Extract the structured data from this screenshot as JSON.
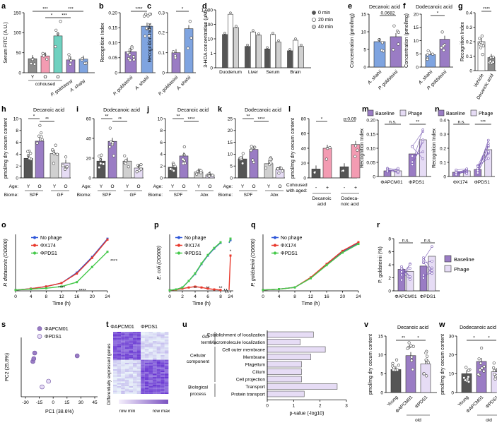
{
  "colors": {
    "purple": "#9A7CC4",
    "light_purple": "#E6DCF5",
    "teal": "#6FD1C0",
    "pink": "#F39BB2",
    "blue": "#7FA4E0",
    "gray": "#8C8C8C",
    "dark_gray": "#555555",
    "light_gray": "#D0D0D0",
    "line_blue": "#2F57D8",
    "line_red": "#E8372A",
    "line_green": "#45C94B"
  },
  "chart_data": [
    {
      "panel": "a",
      "type": "bar",
      "ylabel": "Serum FITC (A.U.)",
      "yticks": [
        "0",
        "50",
        "100",
        "150"
      ],
      "ylim": [
        0,
        150
      ],
      "categories": [
        "Y",
        "O",
        "O",
        "P. goldsteinii",
        "A. shahii"
      ],
      "group_label": "cohoused",
      "values": [
        35,
        42,
        92,
        32,
        34
      ],
      "colors": [
        "#8C8C8C",
        "#F39BB2",
        "#6FD1C0",
        "#9A7CC4",
        "#7FA4E0"
      ],
      "significance": [
        "***",
        "*",
        "***",
        "***"
      ]
    },
    {
      "panel": "b",
      "type": "bar",
      "ylabel": "Recognition Index",
      "yticks": [
        "0",
        "0.05",
        "0.10",
        "0.15",
        "0.20"
      ],
      "ylim": [
        0,
        0.2
      ],
      "categories": [
        "P. goldsteinii",
        "A. shahii"
      ],
      "values": [
        0.07,
        0.155
      ],
      "colors": [
        "#9A7CC4",
        "#7FA4E0"
      ],
      "significance": [
        "****"
      ]
    },
    {
      "panel": "c",
      "type": "bar",
      "ylabel": "Recognition Index",
      "yticks": [
        "0",
        "0.1",
        "0.2",
        "0.3"
      ],
      "ylim": [
        0,
        0.3
      ],
      "categories": [
        "P. goldsteinii",
        "A. shahii"
      ],
      "values": [
        0.1,
        0.22
      ],
      "colors": [
        "#9A7CC4",
        "#7FA4E0"
      ],
      "significance": [
        "*"
      ]
    },
    {
      "panel": "d",
      "type": "bar",
      "ylabel": "3-HOA concentration (μM)",
      "yscale": "log",
      "yticks": [
        "0",
        "1",
        "10",
        "100",
        "1,000"
      ],
      "categories": [
        "Duodenum",
        "Liver",
        "Serum",
        "Brain"
      ],
      "series": [
        {
          "name": "0 min",
          "values": [
            20,
            3,
            2,
            1.5
          ],
          "color": "#555555"
        },
        {
          "name": "20 min",
          "values": [
            500,
            30,
            20,
            8
          ],
          "color": "#FFFFFF"
        },
        {
          "name": "40 min",
          "values": [
            60,
            18,
            6,
            3
          ],
          "color": "#D0D0D0"
        }
      ]
    },
    {
      "panel": "e",
      "type": "bar",
      "title": "Decanoic acid",
      "ylabel": "Concentration (pmol/mg)",
      "yticks": [
        "0",
        "5",
        "10",
        "15"
      ],
      "ylim": [
        0,
        15
      ],
      "categories": [
        "A. shahii",
        "P. goldsteinii"
      ],
      "values": [
        7.2,
        8.6
      ],
      "colors": [
        "#7FA4E0",
        "#9A7CC4"
      ],
      "significance": [
        "0.0682"
      ]
    },
    {
      "panel": "f",
      "type": "bar",
      "title": "Dodecanoic acid",
      "ylabel": "Concentration (pmol/mg)",
      "yticks": [
        "0",
        "5",
        "10",
        "15",
        "20"
      ],
      "ylim": [
        0,
        20
      ],
      "categories": [
        "A. shahii",
        "P. goldsteinii"
      ],
      "values": [
        4.7,
        10.5
      ],
      "colors": [
        "#7FA4E0",
        "#9A7CC4"
      ],
      "significance": [
        "*"
      ]
    },
    {
      "panel": "g",
      "type": "bar",
      "ylabel": "Recognition Index",
      "yticks": [
        "0",
        "0.1",
        "0.2",
        "0.3",
        "0.4"
      ],
      "ylim": [
        0,
        0.4
      ],
      "categories": [
        "Vehicle",
        "Decanoic acid"
      ],
      "values": [
        0.2,
        0.09
      ],
      "colors": [
        "#FFFFFF",
        "#8C8C8C"
      ],
      "significance": [
        "****"
      ]
    },
    {
      "panel": "h",
      "type": "bar",
      "title": "Decanoic acid",
      "ylabel": "pmol/mg dry cecum content",
      "yticks": [
        "0",
        "2",
        "4",
        "6",
        "8",
        "10"
      ],
      "ylim": [
        0,
        10
      ],
      "categories": [
        "Y",
        "O",
        "Y",
        "O"
      ],
      "groups": [
        "SPF",
        "GF"
      ],
      "values": [
        3.3,
        6.2,
        4.1,
        2.5
      ],
      "colors": [
        "#555555",
        "#9A7CC4",
        "#D0D0D0",
        "#E6DCF5"
      ],
      "significance": [
        "*",
        "**"
      ]
    },
    {
      "panel": "i",
      "type": "bar",
      "title": "Dodecanoic acid",
      "yticks": [
        "0",
        "20",
        "40",
        "60"
      ],
      "ylim": [
        0,
        60
      ],
      "categories": [
        "Y",
        "O",
        "Y",
        "O"
      ],
      "groups": [
        "SPF",
        "GF"
      ],
      "values": [
        17,
        37,
        17,
        10
      ],
      "colors": [
        "#555555",
        "#9A7CC4",
        "#D0D0D0",
        "#E6DCF5"
      ],
      "significance": [
        "**",
        "**"
      ]
    },
    {
      "panel": "j",
      "type": "bar",
      "title": "Decanoic acid",
      "yticks": [
        "0",
        "2",
        "4",
        "6",
        "8",
        "10"
      ],
      "ylim": [
        0,
        10
      ],
      "categories": [
        "Y",
        "O",
        "Y",
        "O"
      ],
      "groups": [
        "SPF",
        "Abx"
      ],
      "values": [
        1.8,
        3.7,
        1.0,
        0.5
      ],
      "colors": [
        "#555555",
        "#9A7CC4",
        "#D0D0D0",
        "#E6DCF5"
      ],
      "significance": [
        "**",
        "****"
      ]
    },
    {
      "panel": "k",
      "type": "bar",
      "title": "Dodecanoic acid",
      "yticks": [
        "0",
        "5",
        "10",
        "15",
        "20",
        "25"
      ],
      "ylim": [
        0,
        25
      ],
      "categories": [
        "Y",
        "O",
        "Y",
        "O"
      ],
      "groups": [
        "SPF",
        "Abx"
      ],
      "values": [
        8,
        12,
        6,
        3.5
      ],
      "colors": [
        "#555555",
        "#9A7CC4",
        "#D0D0D0",
        "#E6DCF5"
      ],
      "significance": [
        "**",
        "****"
      ]
    },
    {
      "panel": "l",
      "type": "bar",
      "ylabel": "pmol/mg dry cecum content",
      "yticks": [
        "0",
        "20",
        "40",
        "60",
        "80"
      ],
      "ylim": [
        0,
        80
      ],
      "categories": [
        "-",
        "+",
        "-",
        "+"
      ],
      "groups": [
        "Decanoic acid",
        "Dodeca- noic acid"
      ],
      "row_label": "Cohoused with aged:",
      "values": [
        12,
        40,
        15,
        45
      ],
      "colors": [
        "#555555",
        "#F39BB2",
        "#555555",
        "#F39BB2"
      ],
      "significance": [
        "*",
        "p:0.09"
      ]
    },
    {
      "panel": "m",
      "type": "bar",
      "ylabel": "Recognition Index",
      "yticks": [
        "0",
        "0.05",
        "0.10",
        "0.15",
        "0.20"
      ],
      "ylim": [
        0,
        0.2
      ],
      "categories": [
        "ΦAPCM01",
        "ΦPDS1"
      ],
      "series": [
        {
          "name": "Baseline",
          "values": [
            0.02,
            0.08
          ]
        },
        {
          "name": "Phage",
          "values": [
            0.02,
            0.13
          ]
        }
      ],
      "significance": [
        "n.s.",
        "**"
      ]
    },
    {
      "panel": "n",
      "type": "bar",
      "ylabel": "Recognition Index",
      "yticks": [
        "0",
        "0.1",
        "0.2",
        "0.3",
        "0.4"
      ],
      "ylim": [
        0,
        0.4
      ],
      "categories": [
        "ΦX174",
        "ΦPDS1"
      ],
      "series": [
        {
          "name": "Baseline",
          "values": [
            0.03,
            0.05
          ]
        },
        {
          "name": "Phage",
          "values": [
            0.04,
            0.19
          ]
        }
      ],
      "significance": [
        "n.s.",
        "***"
      ]
    },
    {
      "panel": "o",
      "type": "line",
      "xlabel": "Time (h)",
      "ylabel": "P. distasonis (OD600)",
      "xticks": [
        "0",
        "4",
        "8",
        "12",
        "16",
        "20",
        "24"
      ],
      "xlim": [
        0,
        24
      ],
      "ylim": [
        0,
        1.3
      ],
      "series": [
        {
          "name": "No phage",
          "x": [
            0,
            4,
            8,
            12,
            16,
            20,
            24
          ],
          "y": [
            0.02,
            0.05,
            0.1,
            0.18,
            0.42,
            0.78,
            1.2
          ],
          "color": "#2F57D8"
        },
        {
          "name": "ΦX174",
          "x": [
            0,
            4,
            8,
            12,
            16,
            20,
            24
          ],
          "y": [
            0.02,
            0.05,
            0.1,
            0.18,
            0.4,
            0.76,
            1.18
          ],
          "color": "#E8372A"
        },
        {
          "name": "ΦPDS1",
          "x": [
            0,
            4,
            8,
            12,
            16,
            20,
            24
          ],
          "y": [
            0.02,
            0.04,
            0.06,
            0.1,
            0.2,
            0.55,
            0.9
          ],
          "color": "#45C94B"
        }
      ],
      "annotations": [
        "****",
        "****",
        "****"
      ]
    },
    {
      "panel": "p",
      "type": "line",
      "xlabel": "Time (h)",
      "ylabel": "E. coli (OD600)",
      "xticks": [
        "0",
        "2",
        "4",
        "6",
        "8",
        "24"
      ],
      "ylim": [
        0,
        2.0
      ],
      "series": [
        {
          "name": "No phage",
          "x": [
            0,
            1,
            2,
            3,
            4,
            5,
            6,
            7,
            8,
            24
          ],
          "y": [
            0.02,
            0.05,
            0.12,
            0.35,
            0.6,
            0.95,
            1.25,
            1.5,
            1.7,
            1.8
          ],
          "color": "#2F57D8"
        },
        {
          "name": "ΦX174",
          "x": [
            0,
            1,
            2,
            3,
            4,
            5,
            6,
            7,
            8,
            24
          ],
          "y": [
            0.02,
            0.04,
            0.08,
            0.12,
            0.15,
            0.12,
            0.08,
            0.05,
            0.03,
            1.25
          ],
          "color": "#E8372A"
        },
        {
          "name": "ΦPDS1",
          "x": [
            0,
            1,
            2,
            3,
            4,
            5,
            6,
            7,
            8,
            24
          ],
          "y": [
            0.02,
            0.05,
            0.12,
            0.35,
            0.62,
            0.97,
            1.27,
            1.52,
            1.72,
            1.85
          ],
          "color": "#45C94B"
        }
      ],
      "annotations": [
        "**",
        "**",
        "**",
        "*"
      ]
    },
    {
      "panel": "q",
      "type": "line",
      "xlabel": "Time (h)",
      "ylabel": "P. goldsteinii (OD600)",
      "xticks": [
        "0",
        "4",
        "8",
        "12",
        "16",
        "20",
        "24"
      ],
      "xlim": [
        0,
        24
      ],
      "ylim": [
        0,
        1.3
      ],
      "series": [
        {
          "name": "No phage",
          "x": [
            0,
            4,
            8,
            12,
            16,
            20,
            24
          ],
          "y": [
            0.02,
            0.04,
            0.08,
            0.3,
            0.6,
            0.9,
            1.1
          ],
          "color": "#2F57D8"
        },
        {
          "name": "ΦX174",
          "x": [
            0,
            4,
            8,
            12,
            16,
            20,
            24
          ],
          "y": [
            0.02,
            0.04,
            0.08,
            0.31,
            0.62,
            0.92,
            1.12
          ],
          "color": "#E8372A"
        },
        {
          "name": "ΦPDS1",
          "x": [
            0,
            4,
            8,
            12,
            16,
            20,
            24
          ],
          "y": [
            0.02,
            0.04,
            0.08,
            0.29,
            0.59,
            0.88,
            1.08
          ],
          "color": "#45C94B"
        }
      ]
    },
    {
      "panel": "r",
      "type": "bar",
      "ylabel": "P. goldsteinii (%)",
      "yticks": [
        "0",
        "2",
        "4",
        "6",
        "8"
      ],
      "ylim": [
        0,
        8
      ],
      "categories": [
        "ΦAPCM01",
        "ΦPDS1"
      ],
      "series": [
        {
          "name": "Baseline",
          "values": [
            3.3,
            3.8
          ]
        },
        {
          "name": "Phage",
          "values": [
            3.0,
            5.3
          ]
        }
      ],
      "significance": [
        "n.s.",
        "n.s."
      ]
    },
    {
      "panel": "s",
      "type": "scatter",
      "xlabel": "PC1 (38.6%)",
      "ylabel": "PC2 (25.8%)",
      "xticks": [
        "-30",
        "-15",
        "0",
        "15",
        "30",
        "45"
      ],
      "series": [
        {
          "name": "ΦAPCM01",
          "x": [
            -22,
            -21,
            -20,
            26
          ],
          "y": [
            0.1,
            0.15,
            0.25,
            0.2
          ],
          "color": "#9A7CC4"
        },
        {
          "name": "ΦPDS1",
          "x": [
            -12,
            -5
          ],
          "y": [
            -0.35,
            -0.25
          ],
          "color": "#E6DCF5"
        }
      ]
    },
    {
      "panel": "t",
      "type": "heatmap",
      "ylabel": "Differentially expressed genes",
      "columns": [
        "ΦAPCM01",
        "ΦPDS1"
      ],
      "legend": [
        "row min",
        "row max"
      ]
    },
    {
      "panel": "u",
      "type": "bar",
      "xlabel": "p-value (-log10)",
      "xticks": [
        "0",
        "1",
        "2",
        "3"
      ],
      "xlim": [
        0,
        3
      ],
      "group_labels": [
        "GO term",
        "Cellular component",
        "Biological process"
      ],
      "categories": [
        "Establishment of localization",
        "Macromolecule localization",
        "Cell outer membrane",
        "Membrane",
        "Flagellum",
        "Cilium",
        "Cell projection",
        "Transport",
        "Protein transport"
      ],
      "values": [
        1.75,
        1.25,
        2.2,
        1.65,
        1.3,
        1.3,
        1.3,
        2.65,
        1.4
      ]
    },
    {
      "panel": "v",
      "type": "bar",
      "title": "Decanoic acid",
      "ylabel": "pmol/mg dry cecum content",
      "yticks": [
        "0",
        "5",
        "10",
        "15"
      ],
      "ylim": [
        0,
        15
      ],
      "categories": [
        "Young",
        "ΦAPCM01",
        "ΦPDS1"
      ],
      "group_label": "old",
      "values": [
        6.1,
        9.8,
        7.6
      ],
      "colors": [
        "#555555",
        "#9A7CC4",
        "#E6DCF5"
      ],
      "significance": [
        "**",
        "*"
      ]
    },
    {
      "panel": "w",
      "type": "bar",
      "title": "Dodecanoic acid",
      "ylabel": "pmol/mg dry cecum content",
      "yticks": [
        "0",
        "10",
        "20",
        "30"
      ],
      "ylim": [
        0,
        30
      ],
      "categories": [
        "Young",
        "ΦAPCM01",
        "ΦPDS1"
      ],
      "group_label": "old",
      "values": [
        10,
        16.5,
        11
      ],
      "colors": [
        "#555555",
        "#9A7CC4",
        "#E6DCF5"
      ],
      "significance": [
        "*",
        "*"
      ]
    }
  ]
}
